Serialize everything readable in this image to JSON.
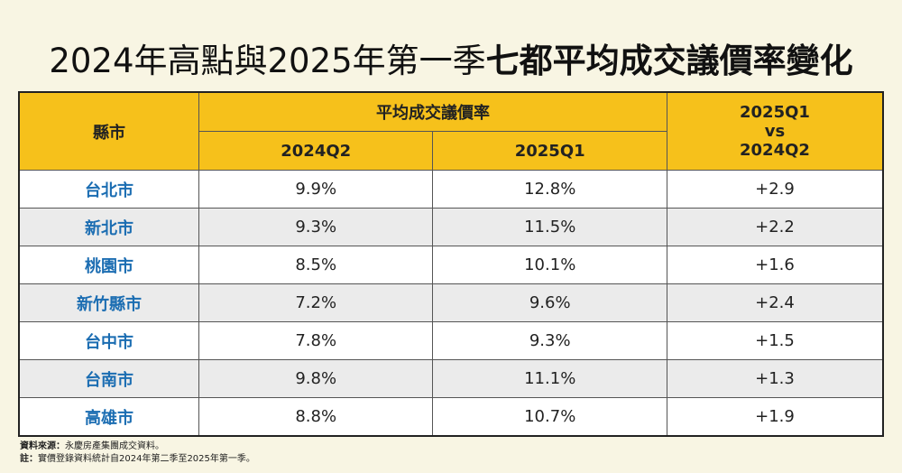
{
  "header": {
    "title_regular": "2024年高點與2025年第一季",
    "title_bold": "七都平均成交議價率變化"
  },
  "table": {
    "city_header": "縣市",
    "group_header": "平均成交議價率",
    "sub_headers": [
      "2024Q2",
      "2025Q1"
    ],
    "diff_header": [
      "2025Q1",
      "vs",
      "2024Q2"
    ],
    "rows": [
      [
        "台北市",
        "9.9%",
        "12.8%",
        "+2.9"
      ],
      [
        "新北市",
        "9.3%",
        "11.5%",
        "+2.2"
      ],
      [
        "桃園市",
        "8.5%",
        "10.1%",
        "+1.6"
      ],
      [
        "新竹縣市",
        "7.2%",
        "9.6%",
        "+2.4"
      ],
      [
        "台中市",
        "7.8%",
        "9.3%",
        "+1.5"
      ],
      [
        "台南市",
        "9.8%",
        "11.1%",
        "+1.3"
      ],
      [
        "高雄市",
        "8.8%",
        "10.7%",
        "+1.9"
      ]
    ]
  },
  "footer": {
    "source_label": "資料來源：",
    "source_text": "永慶房產集團成交資料。",
    "note_label": "註：",
    "note_text": "實價登錄資料統計自2024年第二季至2025年第一季。"
  }
}
